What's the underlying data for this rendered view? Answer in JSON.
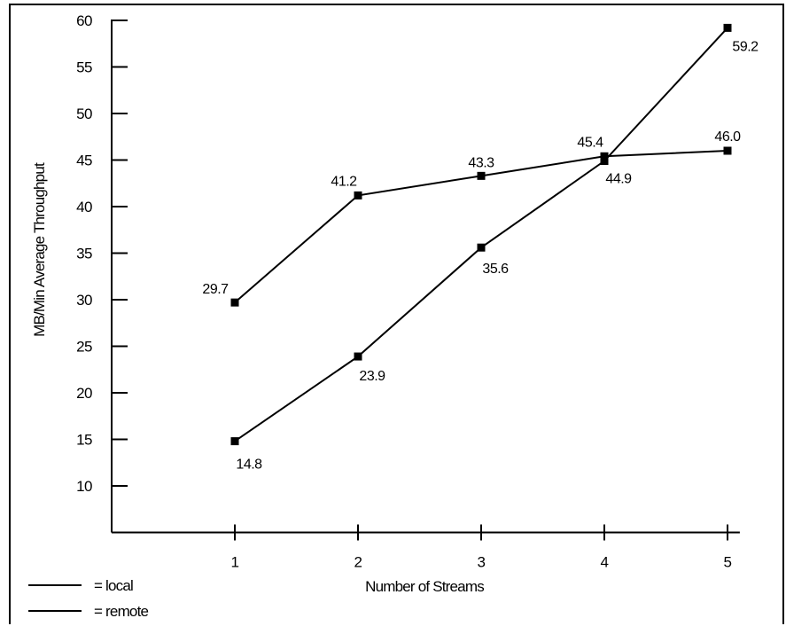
{
  "chart_data": {
    "type": "line",
    "title": "",
    "xlabel": "Number of Streams",
    "ylabel": "MB/Min Average Throughput",
    "x": [
      1,
      2,
      3,
      4,
      5
    ],
    "xlim": [
      0,
      5.1
    ],
    "ylim": [
      5,
      60
    ],
    "yticks": [
      10,
      15,
      20,
      25,
      30,
      35,
      40,
      45,
      50,
      55,
      60
    ],
    "xticks": [
      1,
      2,
      3,
      4,
      5
    ],
    "grid": false,
    "legend_position": "bottom-left",
    "series": [
      {
        "name": "local",
        "values": [
          29.7,
          41.2,
          43.3,
          45.4,
          46.0
        ],
        "labels": [
          "29.7",
          "41.2",
          "43.3",
          "45.4",
          "46.0"
        ]
      },
      {
        "name": "remote",
        "values": [
          14.8,
          23.9,
          35.6,
          44.9,
          59.2
        ],
        "labels": [
          "14.8",
          "23.9",
          "35.6",
          "44.9",
          "59.2"
        ]
      }
    ],
    "legend": [
      {
        "label": "= local"
      },
      {
        "label": "= remote"
      }
    ]
  }
}
